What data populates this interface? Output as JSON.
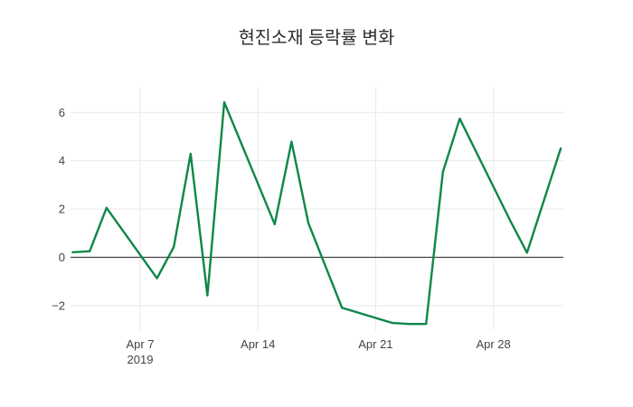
{
  "chart": {
    "title": "현진소재 등락률 변화"
  },
  "chart_data": {
    "type": "line",
    "title": "현진소재 등락률 변화",
    "series": [
      {
        "name": "등락률",
        "x": [
          "2019-04-03",
          "2019-04-04",
          "2019-04-05",
          "2019-04-08",
          "2019-04-09",
          "2019-04-10",
          "2019-04-11",
          "2019-04-12",
          "2019-04-15",
          "2019-04-16",
          "2019-04-17",
          "2019-04-18",
          "2019-04-19",
          "2019-04-22",
          "2019-04-23",
          "2019-04-24",
          "2019-04-25",
          "2019-04-26",
          "2019-04-29",
          "2019-04-30",
          "2019-05-02"
        ],
        "y": [
          0.21,
          0.25,
          2.05,
          -0.87,
          0.43,
          4.29,
          -1.58,
          6.42,
          1.37,
          4.79,
          1.42,
          -0.34,
          -2.09,
          -2.72,
          -2.76,
          -2.76,
          3.54,
          5.74,
          1.52,
          0.19,
          4.5
        ]
      }
    ],
    "x_ticks": [
      {
        "label": "Apr 7",
        "sublabel": "2019",
        "date": "2019-04-07"
      },
      {
        "label": "Apr 14",
        "date": "2019-04-14"
      },
      {
        "label": "Apr 21",
        "date": "2019-04-21"
      },
      {
        "label": "Apr 28",
        "date": "2019-04-28"
      }
    ],
    "y_ticks": [
      {
        "label": "−2",
        "value": -2
      },
      {
        "label": "0",
        "value": 0
      },
      {
        "label": "2",
        "value": 2
      },
      {
        "label": "4",
        "value": 4
      },
      {
        "label": "6",
        "value": 6
      }
    ],
    "xlabel": "",
    "ylabel": "",
    "ylim": [
      -3.0,
      7.0
    ],
    "xlim": [
      "2019-04-02",
      "2019-05-02"
    ],
    "grid": true,
    "zeroline": true,
    "legend": "none",
    "line_color": "#0e8748",
    "grid_color": "#e9e9e9",
    "zeroline_color": "#444444",
    "text_color": "#444444",
    "background_color": "#ffffff"
  }
}
